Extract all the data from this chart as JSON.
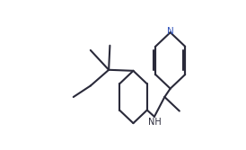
{
  "bg_color": "#ffffff",
  "bond_color": "#2a2a3a",
  "N_color": "#3355bb",
  "NH_color": "#2a2a3a",
  "lw": 1.5,
  "dbo": 0.012,
  "figsize": [
    2.74,
    1.67
  ],
  "dpi": 100,
  "font_size_N": 7.5,
  "font_size_NH": 7.0
}
